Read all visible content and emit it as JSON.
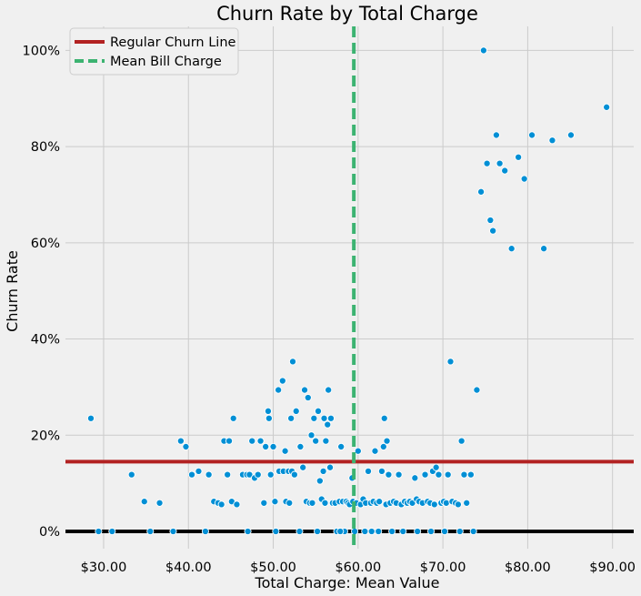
{
  "chart_data": {
    "type": "scatter",
    "title": "Churn Rate by Total Charge",
    "xlabel": "Total Charge: Mean Value",
    "ylabel": "Churn Rate",
    "xlim": [
      25.5,
      92.5
    ],
    "ylim": [
      -0.036,
      1.05
    ],
    "grid": true,
    "legend_placement": "top-left",
    "x_ticks": [
      30,
      40,
      50,
      60,
      70,
      80,
      90
    ],
    "x_tick_labels": [
      "$30.00",
      "$40.00",
      "$50.00",
      "$60.00",
      "$70.00",
      "$80.00",
      "$90.00"
    ],
    "y_ticks": [
      0,
      0.2,
      0.4,
      0.6,
      0.8,
      1.0
    ],
    "y_tick_labels": [
      "0%",
      "20%",
      "40%",
      "60%",
      "80%",
      "100%"
    ],
    "reference_lines": [
      {
        "name": "Regular Churn Line",
        "orientation": "horizontal",
        "value": 0.145,
        "color": "#b22222",
        "style": "solid"
      },
      {
        "name": "Mean Bill Charge",
        "orientation": "vertical",
        "value": 59.5,
        "color": "#3cb371",
        "style": "dashed"
      }
    ],
    "baseline": {
      "orientation": "horizontal",
      "value": 0,
      "color": "#000000"
    },
    "colors": {
      "points": "#008fd5",
      "point_edge": "#ffffff"
    },
    "points": [
      [
        28.5,
        0.235
      ],
      [
        33.3,
        0.118
      ],
      [
        34.8,
        0.062
      ],
      [
        36.6,
        0.059
      ],
      [
        38.2,
        0.0
      ],
      [
        39.1,
        0.188
      ],
      [
        39.7,
        0.176
      ],
      [
        40.4,
        0.118
      ],
      [
        41.2,
        0.125
      ],
      [
        42.4,
        0.118
      ],
      [
        43.0,
        0.062
      ],
      [
        43.5,
        0.059
      ],
      [
        43.9,
        0.056
      ],
      [
        44.2,
        0.188
      ],
      [
        44.6,
        0.118
      ],
      [
        44.8,
        0.188
      ],
      [
        45.1,
        0.062
      ],
      [
        45.3,
        0.235
      ],
      [
        45.7,
        0.056
      ],
      [
        46.4,
        0.118
      ],
      [
        46.9,
        0.118
      ],
      [
        47.2,
        0.118
      ],
      [
        47.5,
        0.188
      ],
      [
        47.8,
        0.111
      ],
      [
        48.2,
        0.118
      ],
      [
        48.5,
        0.188
      ],
      [
        48.9,
        0.059
      ],
      [
        49.1,
        0.176
      ],
      [
        49.4,
        0.25
      ],
      [
        49.5,
        0.235
      ],
      [
        49.7,
        0.118
      ],
      [
        50.0,
        0.176
      ],
      [
        50.2,
        0.062
      ],
      [
        50.6,
        0.294
      ],
      [
        50.7,
        0.125
      ],
      [
        51.1,
        0.313
      ],
      [
        51.2,
        0.125
      ],
      [
        51.4,
        0.167
      ],
      [
        51.5,
        0.062
      ],
      [
        51.8,
        0.125
      ],
      [
        51.9,
        0.059
      ],
      [
        52.1,
        0.235
      ],
      [
        52.2,
        0.125
      ],
      [
        52.3,
        0.353
      ],
      [
        52.5,
        0.118
      ],
      [
        52.7,
        0.25
      ],
      [
        53.2,
        0.176
      ],
      [
        53.5,
        0.133
      ],
      [
        53.7,
        0.294
      ],
      [
        53.9,
        0.062
      ],
      [
        54.1,
        0.278
      ],
      [
        54.3,
        0.059
      ],
      [
        54.5,
        0.2
      ],
      [
        54.6,
        0.059
      ],
      [
        54.8,
        0.235
      ],
      [
        55.0,
        0.188
      ],
      [
        55.3,
        0.25
      ],
      [
        55.5,
        0.105
      ],
      [
        55.7,
        0.067
      ],
      [
        55.9,
        0.125
      ],
      [
        56.0,
        0.235
      ],
      [
        56.1,
        0.059
      ],
      [
        56.2,
        0.188
      ],
      [
        56.4,
        0.222
      ],
      [
        56.5,
        0.294
      ],
      [
        56.7,
        0.133
      ],
      [
        56.8,
        0.235
      ],
      [
        57.0,
        0.059
      ],
      [
        57.3,
        0.059
      ],
      [
        57.5,
        0.0
      ],
      [
        57.8,
        0.062
      ],
      [
        58.0,
        0.176
      ],
      [
        58.2,
        0.062
      ],
      [
        58.4,
        0.0
      ],
      [
        58.6,
        0.062
      ],
      [
        58.8,
        0.059
      ],
      [
        59.0,
        0.056
      ],
      [
        59.3,
        0.111
      ],
      [
        59.4,
        0.062
      ],
      [
        59.6,
        0.0
      ],
      [
        59.8,
        0.059
      ],
      [
        60.0,
        0.167
      ],
      [
        60.3,
        0.056
      ],
      [
        60.6,
        0.067
      ],
      [
        60.9,
        0.059
      ],
      [
        61.2,
        0.125
      ],
      [
        61.5,
        0.059
      ],
      [
        61.8,
        0.062
      ],
      [
        62.0,
        0.167
      ],
      [
        62.2,
        0.059
      ],
      [
        62.5,
        0.062
      ],
      [
        62.8,
        0.125
      ],
      [
        63.0,
        0.176
      ],
      [
        63.1,
        0.235
      ],
      [
        63.3,
        0.056
      ],
      [
        63.4,
        0.188
      ],
      [
        63.6,
        0.118
      ],
      [
        63.8,
        0.059
      ],
      [
        64.2,
        0.062
      ],
      [
        64.5,
        0.059
      ],
      [
        64.8,
        0.118
      ],
      [
        65.1,
        0.056
      ],
      [
        65.5,
        0.062
      ],
      [
        65.8,
        0.059
      ],
      [
        66.1,
        0.062
      ],
      [
        66.4,
        0.059
      ],
      [
        66.7,
        0.111
      ],
      [
        66.9,
        0.067
      ],
      [
        67.2,
        0.062
      ],
      [
        67.6,
        0.059
      ],
      [
        67.9,
        0.118
      ],
      [
        68.2,
        0.062
      ],
      [
        68.5,
        0.059
      ],
      [
        68.8,
        0.125
      ],
      [
        69.0,
        0.056
      ],
      [
        69.2,
        0.133
      ],
      [
        69.5,
        0.118
      ],
      [
        69.8,
        0.059
      ],
      [
        70.1,
        0.062
      ],
      [
        70.4,
        0.059
      ],
      [
        70.6,
        0.118
      ],
      [
        70.9,
        0.353
      ],
      [
        71.1,
        0.062
      ],
      [
        71.5,
        0.059
      ],
      [
        71.8,
        0.056
      ],
      [
        72.2,
        0.188
      ],
      [
        72.5,
        0.118
      ],
      [
        72.8,
        0.059
      ],
      [
        73.3,
        0.118
      ],
      [
        74.0,
        0.294
      ],
      [
        74.5,
        0.706
      ],
      [
        74.8,
        1.0
      ],
      [
        75.2,
        0.765
      ],
      [
        75.6,
        0.647
      ],
      [
        75.9,
        0.625
      ],
      [
        76.3,
        0.824
      ],
      [
        76.7,
        0.765
      ],
      [
        77.3,
        0.75
      ],
      [
        78.1,
        0.588
      ],
      [
        78.9,
        0.778
      ],
      [
        79.6,
        0.733
      ],
      [
        80.5,
        0.824
      ],
      [
        81.9,
        0.588
      ],
      [
        82.9,
        0.813
      ],
      [
        85.1,
        0.824
      ],
      [
        89.3,
        0.882
      ],
      [
        29.4,
        0.0
      ],
      [
        31.0,
        0.0
      ],
      [
        35.5,
        0.0
      ],
      [
        42.0,
        0.0
      ],
      [
        47.0,
        0.0
      ],
      [
        50.3,
        0.0
      ],
      [
        53.1,
        0.0
      ],
      [
        55.2,
        0.0
      ],
      [
        57.9,
        0.0
      ],
      [
        60.8,
        0.0
      ],
      [
        61.6,
        0.0
      ],
      [
        62.4,
        0.0
      ],
      [
        64.0,
        0.0
      ],
      [
        65.3,
        0.0
      ],
      [
        67.0,
        0.0
      ],
      [
        68.6,
        0.0
      ],
      [
        70.2,
        0.0
      ],
      [
        72.0,
        0.0
      ],
      [
        73.6,
        0.0
      ]
    ]
  }
}
